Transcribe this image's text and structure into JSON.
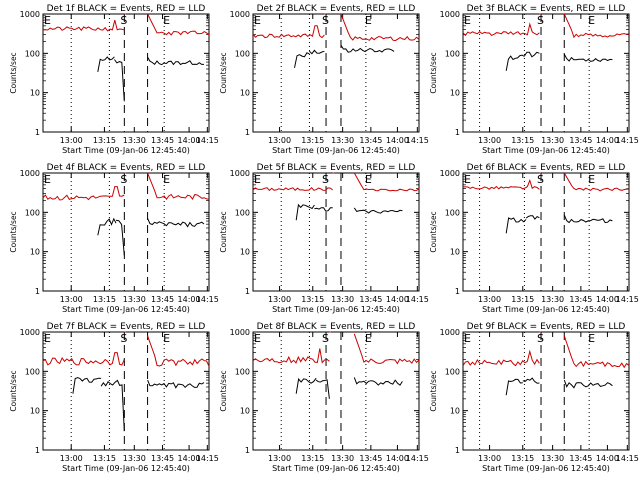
{
  "chart_data": [
    {
      "type": "line",
      "title": "Det 1f BLACK = Events, RED = LLD",
      "xlabel": "Start Time (09-Jan-06 12:45:40)",
      "ylabel": "Counts/sec",
      "yscale": "log",
      "ylim": [
        1,
        1000
      ],
      "ytick_labels": [
        "1",
        "10",
        "100",
        "1000"
      ],
      "xtick_labels": [
        "13:00",
        "13:15",
        "13:30",
        "13:45",
        "14:00",
        "14:15"
      ],
      "markers": {
        "E_left": "E",
        "S": "S",
        "E_right": "E"
      },
      "series": [
        {
          "color": "#000000",
          "segments": [
            {
              "start": 0.33,
              "end": 0.43,
              "level": 75,
              "noise": 0.05,
              "seed": 11,
              "hook": "up"
            },
            {
              "start": 0.43,
              "end": 0.49,
              "level": 65,
              "noise": 0.05,
              "seed": 12,
              "drop": 6
            },
            {
              "start": 0.63,
              "end": 0.97,
              "level": 58,
              "noise": 0.04,
              "seed": 13,
              "rise": 80
            }
          ]
        },
        {
          "color": "#cc0000",
          "segments": [
            {
              "start": 0.0,
              "end": 0.49,
              "level": 420,
              "noise": 0.04,
              "seed": 21,
              "bump": [
                0.43,
                700
              ]
            },
            {
              "start": 0.49,
              "end": 0.5,
              "level": 1000,
              "noise": 0.0,
              "seed": 22
            },
            {
              "start": 0.63,
              "end": 1.0,
              "level": 330,
              "noise": 0.04,
              "seed": 23,
              "decay": 1000
            }
          ]
        }
      ]
    },
    {
      "type": "line",
      "title": "Det 2f BLACK = Events, RED = LLD",
      "xlabel": "Start Time (09-Jan-06 12:45:40)",
      "ylabel": "Counts/sec",
      "yscale": "log",
      "ylim": [
        1,
        1000
      ],
      "ytick_labels": [
        "1",
        "10",
        "100",
        "1000"
      ],
      "xtick_labels": [
        "13:00",
        "13:15",
        "13:30",
        "13:45",
        "14:00",
        "14:15"
      ],
      "markers": {
        "E_left": "E",
        "S": "S",
        "E_right": "E"
      },
      "series": [
        {
          "color": "#000000",
          "segments": [
            {
              "start": 0.25,
              "end": 0.34,
              "level": 95,
              "noise": 0.05,
              "seed": 31,
              "hook": "up"
            },
            {
              "start": 0.34,
              "end": 0.43,
              "level": 115,
              "noise": 0.05,
              "seed": 32
            },
            {
              "start": 0.53,
              "end": 0.85,
              "level": 120,
              "noise": 0.04,
              "seed": 33,
              "rise": 160
            }
          ]
        },
        {
          "color": "#cc0000",
          "segments": [
            {
              "start": 0.0,
              "end": 0.43,
              "level": 280,
              "noise": 0.04,
              "seed": 41,
              "bump": [
                0.38,
                500
              ]
            },
            {
              "start": 0.43,
              "end": 0.44,
              "level": 1000,
              "noise": 0.0,
              "seed": 42
            },
            {
              "start": 0.53,
              "end": 1.0,
              "level": 240,
              "noise": 0.04,
              "seed": 43,
              "decay": 1000
            }
          ]
        }
      ]
    },
    {
      "type": "line",
      "title": "Det 3f BLACK = Events, RED = LLD",
      "xlabel": "Start Time (09-Jan-06 12:45:40)",
      "ylabel": "Counts/sec",
      "yscale": "log",
      "ylim": [
        1,
        1000
      ],
      "ytick_labels": [
        "1",
        "10",
        "100",
        "1000"
      ],
      "xtick_labels": [
        "13:00",
        "13:15",
        "13:30",
        "13:45",
        "14:00",
        "14:15"
      ],
      "markers": {
        "E_left": "E",
        "S": "S",
        "E_right": "E"
      },
      "series": [
        {
          "color": "#000000",
          "segments": [
            {
              "start": 0.26,
              "end": 0.37,
              "level": 80,
              "noise": 0.05,
              "seed": 51,
              "hook": "up"
            },
            {
              "start": 0.37,
              "end": 0.46,
              "level": 95,
              "noise": 0.05,
              "seed": 52
            },
            {
              "start": 0.61,
              "end": 0.9,
              "level": 70,
              "noise": 0.04,
              "seed": 53,
              "rise": 95
            }
          ]
        },
        {
          "color": "#cc0000",
          "segments": [
            {
              "start": 0.0,
              "end": 0.46,
              "level": 320,
              "noise": 0.04,
              "seed": 61,
              "bump": [
                0.4,
                550
              ]
            },
            {
              "start": 0.46,
              "end": 0.47,
              "level": 1000,
              "noise": 0.0,
              "seed": 62
            },
            {
              "start": 0.61,
              "end": 1.0,
              "level": 290,
              "noise": 0.04,
              "seed": 63,
              "decay": 1000
            }
          ]
        }
      ]
    },
    {
      "type": "line",
      "title": "Det 4f BLACK = Events, RED = LLD",
      "xlabel": "Start Time (09-Jan-06 12:45:40)",
      "ylabel": "Counts/sec",
      "yscale": "log",
      "ylim": [
        1,
        1000
      ],
      "ytick_labels": [
        "1",
        "10",
        "100",
        "1000"
      ],
      "xtick_labels": [
        "13:00",
        "13:15",
        "13:30",
        "13:45",
        "14:00",
        "14:15"
      ],
      "markers": {
        "E_left": "E",
        "S": "S",
        "E_right": "E"
      },
      "series": [
        {
          "color": "#000000",
          "segments": [
            {
              "start": 0.33,
              "end": 0.44,
              "level": 58,
              "noise": 0.06,
              "seed": 71,
              "hook": "up"
            },
            {
              "start": 0.44,
              "end": 0.49,
              "level": 55,
              "noise": 0.06,
              "seed": 72,
              "drop": 8
            },
            {
              "start": 0.63,
              "end": 0.97,
              "level": 50,
              "noise": 0.05,
              "seed": 73,
              "rise": 70
            }
          ]
        },
        {
          "color": "#cc0000",
          "segments": [
            {
              "start": 0.0,
              "end": 0.49,
              "level": 240,
              "noise": 0.05,
              "seed": 81,
              "bump": [
                0.44,
                450
              ]
            },
            {
              "start": 0.49,
              "end": 0.5,
              "level": 1000,
              "noise": 0.0,
              "seed": 82
            },
            {
              "start": 0.63,
              "end": 1.0,
              "level": 250,
              "noise": 0.05,
              "seed": 83,
              "decay": 1000
            }
          ]
        }
      ]
    },
    {
      "type": "line",
      "title": "Det 5f BLACK = Events, RED = LLD",
      "xlabel": "Start Time (09-Jan-06 12:45:40)",
      "ylabel": "Counts/sec",
      "yscale": "log",
      "ylim": [
        1,
        1000
      ],
      "ytick_labels": [
        "1",
        "10",
        "100",
        "1000"
      ],
      "xtick_labels": [
        "13:00",
        "13:15",
        "13:30",
        "13:45",
        "14:00",
        "14:15"
      ],
      "markers": {
        "E_left": "E",
        "S": "S",
        "E_right": "E"
      },
      "series": [
        {
          "color": "#000000",
          "segments": [
            {
              "start": 0.26,
              "end": 0.37,
              "level": 140,
              "noise": 0.04,
              "seed": 91,
              "hook": "up"
            },
            {
              "start": 0.37,
              "end": 0.48,
              "level": 120,
              "noise": 0.04,
              "seed": 92
            },
            {
              "start": 0.61,
              "end": 0.9,
              "level": 105,
              "noise": 0.03,
              "seed": 93,
              "rise": 130
            }
          ]
        },
        {
          "color": "#cc0000",
          "segments": [
            {
              "start": 0.0,
              "end": 0.48,
              "level": 390,
              "noise": 0.03,
              "seed": 101
            },
            {
              "start": 0.48,
              "end": 0.49,
              "level": 1000,
              "noise": 0.0,
              "seed": 102
            },
            {
              "start": 0.61,
              "end": 1.0,
              "level": 370,
              "noise": 0.03,
              "seed": 103,
              "decay": 1000
            }
          ]
        }
      ]
    },
    {
      "type": "line",
      "title": "Det 6f BLACK = Events, RED = LLD",
      "xlabel": "Start Time (09-Jan-06 12:45:40)",
      "ylabel": "Counts/sec",
      "yscale": "log",
      "ylim": [
        1,
        1000
      ],
      "ytick_labels": [
        "1",
        "10",
        "100",
        "1000"
      ],
      "xtick_labels": [
        "13:00",
        "13:15",
        "13:30",
        "13:45",
        "14:00",
        "14:15"
      ],
      "markers": {
        "E_left": "E",
        "S": "S",
        "E_right": "E"
      },
      "series": [
        {
          "color": "#000000",
          "segments": [
            {
              "start": 0.26,
              "end": 0.38,
              "level": 65,
              "noise": 0.05,
              "seed": 111,
              "hook": "up"
            },
            {
              "start": 0.38,
              "end": 0.46,
              "level": 75,
              "noise": 0.05,
              "seed": 112
            },
            {
              "start": 0.61,
              "end": 0.9,
              "level": 62,
              "noise": 0.04,
              "seed": 113,
              "rise": 85
            }
          ]
        },
        {
          "color": "#cc0000",
          "segments": [
            {
              "start": 0.0,
              "end": 0.46,
              "level": 420,
              "noise": 0.03,
              "seed": 121,
              "bump": [
                0.4,
                650
              ]
            },
            {
              "start": 0.46,
              "end": 0.47,
              "level": 1000,
              "noise": 0.0,
              "seed": 122
            },
            {
              "start": 0.61,
              "end": 1.0,
              "level": 380,
              "noise": 0.03,
              "seed": 123,
              "decay": 1000
            }
          ]
        }
      ]
    },
    {
      "type": "line",
      "title": "Det 7f BLACK = Events, RED = LLD",
      "xlabel": "Start Time (09-Jan-06 12:45:40)",
      "ylabel": "Counts/sec",
      "yscale": "log",
      "ylim": [
        1,
        1000
      ],
      "ytick_labels": [
        "1",
        "10",
        "100",
        "1000"
      ],
      "xtick_labels": [
        "13:00",
        "13:15",
        "13:30",
        "13:45",
        "14:00",
        "14:15"
      ],
      "markers": {
        "E_left": "E",
        "S": "S",
        "E_right": "E"
      },
      "series": [
        {
          "color": "#000000",
          "segments": [
            {
              "start": 0.18,
              "end": 0.35,
              "level": 60,
              "noise": 0.06,
              "seed": 131,
              "hook": "up"
            },
            {
              "start": 0.35,
              "end": 0.49,
              "level": 50,
              "noise": 0.06,
              "seed": 132,
              "drop": 3
            },
            {
              "start": 0.63,
              "end": 0.97,
              "level": 45,
              "noise": 0.05,
              "seed": 133,
              "rise": 60
            }
          ]
        },
        {
          "color": "#cc0000",
          "segments": [
            {
              "start": 0.0,
              "end": 0.49,
              "level": 180,
              "noise": 0.07,
              "seed": 141,
              "bump": [
                0.44,
                300
              ]
            },
            {
              "start": 0.49,
              "end": 0.5,
              "level": 1000,
              "noise": 0.0,
              "seed": 142
            },
            {
              "start": 0.63,
              "end": 1.0,
              "level": 170,
              "noise": 0.07,
              "seed": 143,
              "decay": 800
            }
          ]
        }
      ]
    },
    {
      "type": "line",
      "title": "Det 8f BLACK = Events, RED = LLD",
      "xlabel": "Start Time (09-Jan-06 12:45:40)",
      "ylabel": "Counts/sec",
      "yscale": "log",
      "ylim": [
        1,
        1000
      ],
      "ytick_labels": [
        "1",
        "10",
        "100",
        "1000"
      ],
      "xtick_labels": [
        "13:00",
        "13:15",
        "13:30",
        "13:45",
        "14:00",
        "14:15"
      ],
      "markers": {
        "E_left": "E",
        "S": "S",
        "E_right": "E"
      },
      "series": [
        {
          "color": "#000000",
          "segments": [
            {
              "start": 0.26,
              "end": 0.38,
              "level": 60,
              "noise": 0.06,
              "seed": 151,
              "hook": "up"
            },
            {
              "start": 0.38,
              "end": 0.46,
              "level": 55,
              "noise": 0.06,
              "seed": 152,
              "drop": 20
            },
            {
              "start": 0.61,
              "end": 0.9,
              "level": 52,
              "noise": 0.05,
              "seed": 153,
              "rise": 70
            }
          ]
        },
        {
          "color": "#cc0000",
          "segments": [
            {
              "start": 0.0,
              "end": 0.46,
              "level": 200,
              "noise": 0.06,
              "seed": 161,
              "bump": [
                0.4,
                380
              ]
            },
            {
              "start": 0.46,
              "end": 0.47,
              "level": 1000,
              "noise": 0.0,
              "seed": 162
            },
            {
              "start": 0.61,
              "end": 1.0,
              "level": 180,
              "noise": 0.06,
              "seed": 163,
              "decay": 900
            }
          ]
        }
      ]
    },
    {
      "type": "line",
      "title": "Det 9f BLACK = Events, RED = LLD",
      "xlabel": "Start Time (09-Jan-06 12:45:40)",
      "ylabel": "Counts/sec",
      "yscale": "log",
      "ylim": [
        1,
        1000
      ],
      "ytick_labels": [
        "1",
        "10",
        "100",
        "1000"
      ],
      "xtick_labels": [
        "13:00",
        "13:15",
        "13:30",
        "13:45",
        "14:00",
        "14:15"
      ],
      "markers": {
        "E_left": "E",
        "S": "S",
        "E_right": "E"
      },
      "series": [
        {
          "color": "#000000",
          "segments": [
            {
              "start": 0.26,
              "end": 0.36,
              "level": 55,
              "noise": 0.06,
              "seed": 171,
              "hook": "up"
            },
            {
              "start": 0.36,
              "end": 0.46,
              "level": 58,
              "noise": 0.06,
              "seed": 172
            },
            {
              "start": 0.61,
              "end": 0.9,
              "level": 45,
              "noise": 0.05,
              "seed": 173,
              "rise": 60
            }
          ]
        },
        {
          "color": "#cc0000",
          "segments": [
            {
              "start": 0.0,
              "end": 0.46,
              "level": 170,
              "noise": 0.06,
              "seed": 181,
              "bump": [
                0.4,
                320
              ]
            },
            {
              "start": 0.46,
              "end": 0.47,
              "level": 1000,
              "noise": 0.0,
              "seed": 182
            },
            {
              "start": 0.61,
              "end": 1.0,
              "level": 150,
              "noise": 0.06,
              "seed": 183,
              "decay": 800
            }
          ]
        }
      ]
    }
  ]
}
